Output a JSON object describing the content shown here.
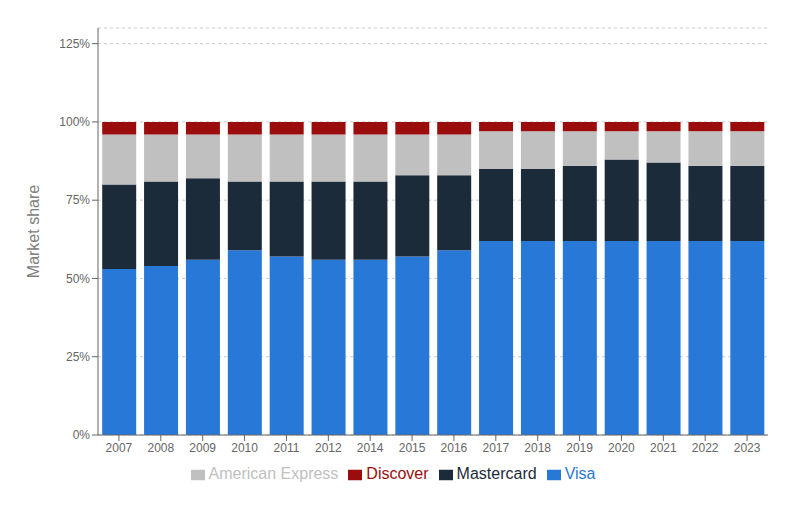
{
  "chart_data": {
    "type": "bar",
    "stacked": true,
    "ylabel": "Market share",
    "categories": [
      "2007",
      "2008",
      "2009",
      "2010",
      "2011",
      "2012",
      "2014",
      "2015",
      "2016",
      "2017",
      "2018",
      "2019",
      "2020",
      "2021",
      "2022",
      "2023"
    ],
    "series": [
      {
        "name": "Visa",
        "color": "#2878d8",
        "values": [
          53,
          54,
          56,
          59,
          57,
          56,
          56,
          57,
          59,
          62,
          62,
          62,
          62,
          62,
          62,
          62
        ]
      },
      {
        "name": "Mastercard",
        "color": "#1c2b3a",
        "values": [
          27,
          27,
          26,
          22,
          24,
          25,
          25,
          26,
          24,
          23,
          23,
          24,
          26,
          25,
          24,
          24
        ]
      },
      {
        "name": "American Express",
        "color": "#c0c0c0",
        "values": [
          16,
          15,
          14,
          15,
          15,
          15,
          15,
          13,
          13,
          12,
          12,
          11,
          9,
          10,
          11,
          11
        ]
      },
      {
        "name": "Discover",
        "color": "#9b0d0d",
        "values": [
          4,
          4,
          4,
          4,
          4,
          4,
          4,
          4,
          4,
          3,
          3,
          3,
          3,
          3,
          3,
          3
        ]
      }
    ],
    "ylim": [
      0,
      130
    ],
    "yticks": [
      {
        "value": 0,
        "label": "0%"
      },
      {
        "value": 25,
        "label": "25%"
      },
      {
        "value": 50,
        "label": "50%"
      },
      {
        "value": 75,
        "label": "75%"
      },
      {
        "value": 100,
        "label": "100%"
      },
      {
        "value": 125,
        "label": "125%"
      }
    ],
    "grid": true,
    "legend": "bottom"
  }
}
